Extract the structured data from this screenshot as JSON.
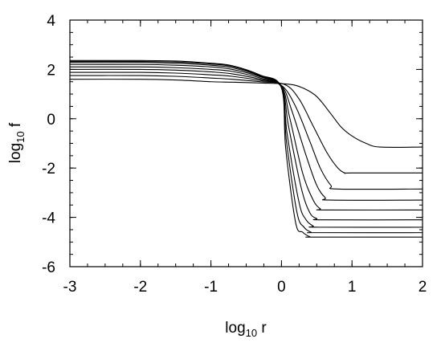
{
  "chart_data": {
    "type": "line",
    "xlabel": {
      "prefix": "log",
      "sub": "10",
      "suffix": " r"
    },
    "ylabel": {
      "prefix": "log",
      "sub": "10",
      "suffix": " f"
    },
    "xlim": [
      -3,
      2
    ],
    "ylim": [
      -6,
      4
    ],
    "xticks": [
      -3,
      -2,
      -1,
      0,
      1,
      2
    ],
    "yticks": [
      -6,
      -4,
      -2,
      0,
      2,
      4
    ],
    "x_minor_step": 0.25,
    "y_minor_step": 0.5,
    "grid": false,
    "line_color": "#000000",
    "series": [
      {
        "x": [
          -3,
          -2,
          -1.5,
          -1,
          -0.7,
          -0.3,
          0.1,
          0.3,
          0.5,
          0.7,
          0.85,
          1.0,
          1.2,
          1.4,
          2.0
        ],
        "y": [
          1.6,
          1.6,
          1.57,
          1.5,
          1.48,
          1.45,
          1.4,
          1.25,
          0.9,
          0.2,
          -0.35,
          -0.7,
          -1.0,
          -1.15,
          -1.15
        ]
      },
      {
        "x": [
          -3,
          -2,
          -1.5,
          -1,
          -0.7,
          -0.3,
          0.05,
          0.25,
          0.45,
          0.65,
          0.8,
          0.9,
          1.0,
          2.0
        ],
        "y": [
          1.75,
          1.75,
          1.72,
          1.65,
          1.6,
          1.5,
          1.38,
          0.8,
          -0.3,
          -1.4,
          -2.0,
          -2.2,
          -2.2,
          -2.2
        ]
      },
      {
        "x": [
          -3,
          -2,
          -1.5,
          -1,
          -0.7,
          -0.3,
          0.0,
          0.2,
          0.4,
          0.55,
          0.7,
          0.8,
          2.0
        ],
        "y": [
          1.88,
          1.88,
          1.85,
          1.78,
          1.72,
          1.55,
          1.35,
          0.5,
          -0.9,
          -2.0,
          -2.7,
          -2.85,
          -2.85
        ]
      },
      {
        "x": [
          -3,
          -2,
          -1.5,
          -1,
          -0.7,
          -0.3,
          0.0,
          0.15,
          0.35,
          0.5,
          0.62,
          0.7,
          2.0
        ],
        "y": [
          2.0,
          2.0,
          1.97,
          1.9,
          1.82,
          1.6,
          1.33,
          0.3,
          -1.5,
          -2.7,
          -3.2,
          -3.3,
          -3.3
        ]
      },
      {
        "x": [
          -3,
          -2,
          -1.5,
          -1,
          -0.7,
          -0.3,
          0.0,
          0.12,
          0.3,
          0.45,
          0.55,
          0.62,
          2.0
        ],
        "y": [
          2.1,
          2.1,
          2.07,
          2.0,
          1.92,
          1.65,
          1.3,
          0.0,
          -2.2,
          -3.3,
          -3.65,
          -3.7,
          -3.7
        ]
      },
      {
        "x": [
          -3,
          -2,
          -1.5,
          -1,
          -0.7,
          -0.3,
          0.0,
          0.1,
          0.28,
          0.4,
          0.5,
          0.58,
          2.0
        ],
        "y": [
          2.2,
          2.2,
          2.17,
          2.1,
          2.0,
          1.7,
          1.28,
          -0.3,
          -2.8,
          -3.8,
          -4.05,
          -4.1,
          -4.1
        ]
      },
      {
        "x": [
          -3,
          -2,
          -1.5,
          -1,
          -0.7,
          -0.3,
          0.0,
          0.08,
          0.25,
          0.35,
          0.45,
          0.52,
          2.0
        ],
        "y": [
          2.28,
          2.28,
          2.25,
          2.17,
          2.07,
          1.73,
          1.27,
          -0.6,
          -3.4,
          -4.1,
          -4.35,
          -4.4,
          -4.4
        ]
      },
      {
        "x": [
          -3,
          -2,
          -1.5,
          -1,
          -0.7,
          -0.3,
          0.0,
          0.07,
          0.22,
          0.32,
          0.42,
          0.5,
          2.0
        ],
        "y": [
          2.32,
          2.32,
          2.3,
          2.22,
          2.12,
          1.75,
          1.26,
          -0.9,
          -3.8,
          -4.4,
          -4.6,
          -4.62,
          -4.62
        ]
      },
      {
        "x": [
          -3,
          -2,
          -1.5,
          -1,
          -0.7,
          -0.3,
          0.0,
          0.06,
          0.2,
          0.3,
          0.4,
          0.48,
          2.0
        ],
        "y": [
          2.36,
          2.36,
          2.34,
          2.25,
          2.15,
          1.77,
          1.25,
          -1.2,
          -4.2,
          -4.6,
          -4.78,
          -4.8,
          -4.8
        ]
      }
    ]
  }
}
